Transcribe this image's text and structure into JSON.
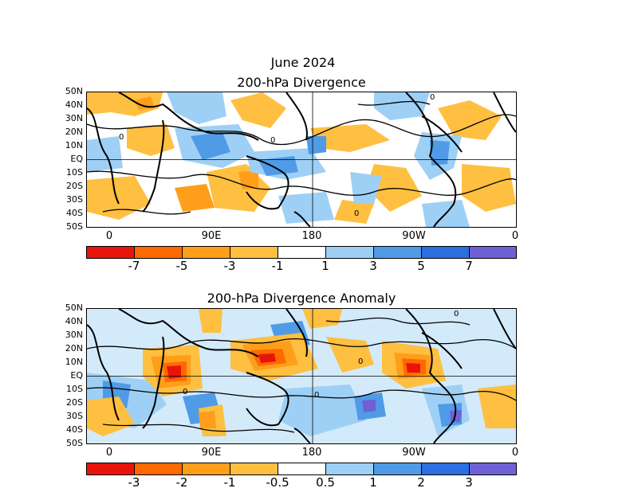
{
  "month_title": "June 2024",
  "panels": [
    {
      "title": "200-hPa Divergence",
      "lat_labels": [
        "50N",
        "40N",
        "30N",
        "20N",
        "10N",
        "EQ",
        "10S",
        "20S",
        "30S",
        "40S",
        "50S"
      ],
      "lon_labels": [
        "0",
        "90E",
        "180",
        "90W",
        "0"
      ],
      "colorbar_labels": [
        "-7",
        "-5",
        "-3",
        "-1",
        "1",
        "3",
        "5",
        "7"
      ],
      "colorbar_colors": [
        "#e8140a",
        "#ff6a00",
        "#ff9e1a",
        "#ffbf40",
        "#ffffff",
        "#9ed0f5",
        "#4f9be6",
        "#2b6fe0",
        "#7060d6"
      ],
      "contour_label": "0"
    },
    {
      "title": "200-hPa Divergence Anomaly",
      "lat_labels": [
        "50N",
        "40N",
        "30N",
        "20N",
        "10N",
        "EQ",
        "10S",
        "20S",
        "30S",
        "40S",
        "50S"
      ],
      "lon_labels": [
        "0",
        "90E",
        "180",
        "90W",
        "0"
      ],
      "colorbar_labels": [
        "-3",
        "-2",
        "-1",
        "-0.5",
        "0.5",
        "1",
        "2",
        "3"
      ],
      "colorbar_colors": [
        "#e8140a",
        "#ff6a00",
        "#ff9e1a",
        "#ffbf40",
        "#ffffff",
        "#9ed0f5",
        "#4f9be6",
        "#2b6fe0",
        "#7060d6"
      ],
      "contour_label": "0"
    }
  ]
}
